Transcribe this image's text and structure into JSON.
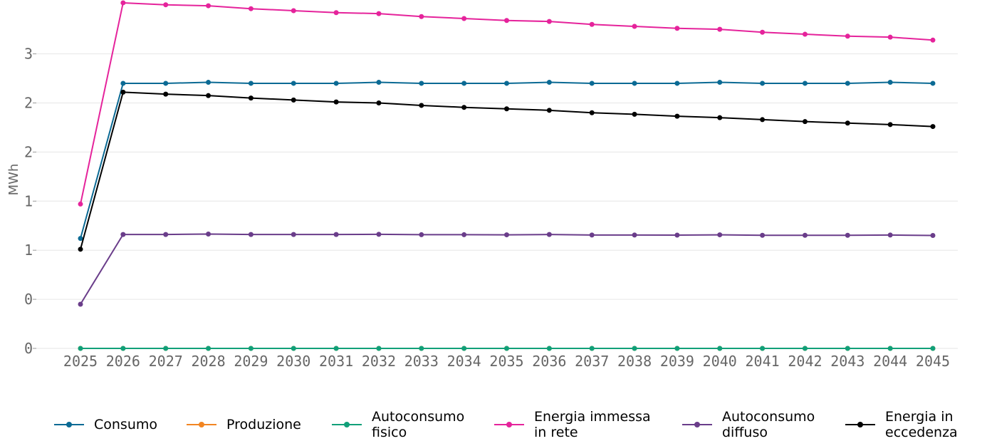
{
  "chart_data": {
    "type": "line",
    "title": "",
    "xlabel": "",
    "ylabel": "MWh",
    "categories": [
      "2025",
      "2026",
      "2027",
      "2028",
      "2029",
      "2030",
      "2031",
      "2032",
      "2033",
      "2034",
      "2035",
      "2036",
      "2037",
      "2038",
      "2039",
      "2040",
      "2041",
      "2042",
      "2043",
      "2044",
      "2045"
    ],
    "ylim": [
      0,
      3.5
    ],
    "ytick_values": [
      0,
      0.5,
      1,
      1.5,
      2,
      2.5,
      3
    ],
    "ytick_labels": [
      "0",
      "0",
      "1",
      "1",
      "2",
      "2",
      "3"
    ],
    "grid": "horizontal",
    "legend_position": "bottom",
    "series": [
      {
        "name": "Consumo",
        "color": "#0b6a94",
        "values": [
          1.12,
          2.7,
          2.7,
          2.71,
          2.7,
          2.7,
          2.7,
          2.71,
          2.7,
          2.7,
          2.7,
          2.71,
          2.7,
          2.7,
          2.7,
          2.71,
          2.7,
          2.7,
          2.7,
          2.71,
          2.7
        ]
      },
      {
        "name": "Produzione",
        "color": "#f28522",
        "values": [
          0,
          0,
          0,
          0,
          0,
          0,
          0,
          0,
          0,
          0,
          0,
          0,
          0,
          0,
          0,
          0,
          0,
          0,
          0,
          0,
          0
        ]
      },
      {
        "name": "Autoconsumo fisico",
        "color": "#11a079",
        "values": [
          0,
          0,
          0,
          0,
          0,
          0,
          0,
          0,
          0,
          0,
          0,
          0,
          0,
          0,
          0,
          0,
          0,
          0,
          0,
          0,
          0
        ]
      },
      {
        "name": "Energia immessa in rete",
        "color": "#e5239b",
        "values": [
          1.47,
          3.52,
          3.5,
          3.49,
          3.46,
          3.44,
          3.42,
          3.41,
          3.38,
          3.36,
          3.34,
          3.33,
          3.3,
          3.28,
          3.26,
          3.25,
          3.22,
          3.2,
          3.18,
          3.17,
          3.14
        ]
      },
      {
        "name": "Autoconsumo diffuso",
        "color": "#6a3d8a",
        "values": [
          0.45,
          1.16,
          1.16,
          1.165,
          1.16,
          1.16,
          1.16,
          1.162,
          1.158,
          1.158,
          1.157,
          1.16,
          1.155,
          1.155,
          1.154,
          1.157,
          1.152,
          1.152,
          1.152,
          1.155,
          1.15
        ]
      },
      {
        "name": "Energia in eccedenza",
        "color": "#000000",
        "values": [
          1.01,
          2.61,
          2.59,
          2.575,
          2.55,
          2.53,
          2.51,
          2.5,
          2.475,
          2.455,
          2.44,
          2.425,
          2.4,
          2.385,
          2.365,
          2.35,
          2.33,
          2.31,
          2.295,
          2.28,
          2.26
        ]
      }
    ]
  },
  "legend": {
    "items": [
      {
        "label": "Consumo"
      },
      {
        "label": "Produzione"
      },
      {
        "label": "Autoconsumo\nfisico"
      },
      {
        "label": "Energia immessa\nin rete"
      },
      {
        "label": "Autoconsumo\ndiffuso"
      },
      {
        "label": "Energia in\neccedenza"
      }
    ]
  }
}
